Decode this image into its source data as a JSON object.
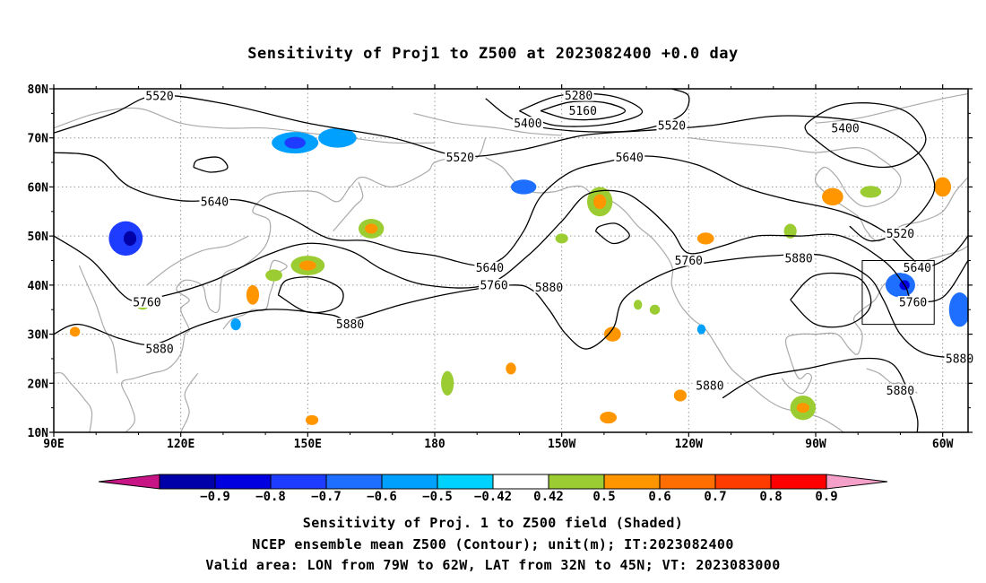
{
  "title": "Sensitivity of Proj1 to Z500 at 2023082400 +0.0 day",
  "map": {
    "lon_range": [
      90,
      306
    ],
    "lat_range": [
      10,
      80
    ],
    "lat_ticks": [
      {
        "value": 80,
        "label": "80N"
      },
      {
        "value": 70,
        "label": "70N"
      },
      {
        "value": 60,
        "label": "60N"
      },
      {
        "value": 50,
        "label": "50N"
      },
      {
        "value": 40,
        "label": "40N"
      },
      {
        "value": 30,
        "label": "30N"
      },
      {
        "value": 20,
        "label": "20N"
      },
      {
        "value": 10,
        "label": "10N"
      }
    ],
    "lon_ticks": [
      {
        "value": 90,
        "label": "90E"
      },
      {
        "value": 120,
        "label": "120E"
      },
      {
        "value": 150,
        "label": "150E"
      },
      {
        "value": 180,
        "label": "180"
      },
      {
        "value": 210,
        "label": "150W"
      },
      {
        "value": 240,
        "label": "120W"
      },
      {
        "value": 270,
        "label": "90W"
      },
      {
        "value": 300,
        "label": "60W"
      }
    ],
    "valid_box": {
      "lon": [
        281,
        298
      ],
      "lat": [
        32,
        45
      ]
    },
    "contour_labels": [
      {
        "text": "5520",
        "lon": 115,
        "lat": 78.5
      },
      {
        "text": "5280",
        "lon": 214,
        "lat": 78.6
      },
      {
        "text": "5160",
        "lon": 215,
        "lat": 75.5
      },
      {
        "text": "5400",
        "lon": 202,
        "lat": 73
      },
      {
        "text": "5520",
        "lon": 236,
        "lat": 72.5
      },
      {
        "text": "5400",
        "lon": 277,
        "lat": 72
      },
      {
        "text": "5520",
        "lon": 186,
        "lat": 66
      },
      {
        "text": "5640",
        "lon": 226,
        "lat": 66
      },
      {
        "text": "5640",
        "lon": 128,
        "lat": 57
      },
      {
        "text": "5520",
        "lon": 290,
        "lat": 50.5
      },
      {
        "text": "5640",
        "lon": 193,
        "lat": 43.5
      },
      {
        "text": "5760",
        "lon": 240,
        "lat": 45
      },
      {
        "text": "5880",
        "lon": 266,
        "lat": 45.5
      },
      {
        "text": "5640",
        "lon": 294,
        "lat": 43.5
      },
      {
        "text": "5760",
        "lon": 112,
        "lat": 36.5
      },
      {
        "text": "5760",
        "lon": 194,
        "lat": 40
      },
      {
        "text": "5880",
        "lon": 207,
        "lat": 39.5
      },
      {
        "text": "5760",
        "lon": 293,
        "lat": 36.5
      },
      {
        "text": "5880",
        "lon": 160,
        "lat": 32
      },
      {
        "text": "5880",
        "lon": 115,
        "lat": 27
      },
      {
        "text": "5880",
        "lon": 304,
        "lat": 25
      },
      {
        "text": "5880",
        "lon": 245,
        "lat": 19.5
      },
      {
        "text": "5880",
        "lon": 290,
        "lat": 18.5
      }
    ],
    "contours": [
      {
        "level": 5160,
        "points": [
          [
            205,
            75.5
          ],
          [
            212,
            73.8
          ],
          [
            220,
            74
          ],
          [
            225,
            75.5
          ],
          [
            220,
            77.2
          ],
          [
            212,
            77.3
          ],
          [
            205,
            75.5
          ]
        ]
      },
      {
        "level": 5280,
        "points": [
          [
            200,
            75.5
          ],
          [
            208,
            72.6
          ],
          [
            220,
            72.7
          ],
          [
            229,
            75.2
          ],
          [
            222,
            78.5
          ],
          [
            210,
            78.7
          ],
          [
            200,
            75.5
          ]
        ]
      },
      {
        "level": 5400,
        "points": [
          [
            192,
            78
          ],
          [
            200,
            73.2
          ],
          [
            213,
            71.4
          ],
          [
            228,
            71.6
          ],
          [
            238,
            74.5
          ],
          [
            240,
            78.5
          ],
          [
            236,
            80
          ]
        ]
      },
      {
        "level": 5400,
        "points": [
          [
            268,
            71
          ],
          [
            276,
            66
          ],
          [
            286,
            64
          ],
          [
            293,
            66
          ],
          [
            296,
            70
          ],
          [
            292,
            75
          ],
          [
            284,
            77
          ],
          [
            275,
            76.5
          ],
          [
            268,
            73
          ],
          [
            268,
            71
          ]
        ]
      },
      {
        "level": 5520,
        "points": [
          [
            90,
            71
          ],
          [
            104,
            75
          ],
          [
            114,
            78.6
          ],
          [
            130,
            77
          ],
          [
            150,
            73
          ],
          [
            170,
            70
          ],
          [
            186,
            66.3
          ],
          [
            200,
            67.5
          ],
          [
            215,
            70.5
          ],
          [
            230,
            71.5
          ],
          [
            245,
            72.5
          ],
          [
            262,
            74.5
          ],
          [
            282,
            73
          ],
          [
            293,
            68
          ],
          [
            298,
            61
          ],
          [
            296,
            56
          ],
          [
            290,
            51
          ],
          [
            283,
            49
          ],
          [
            278,
            52
          ]
        ]
      },
      {
        "level": 5640,
        "points": [
          [
            90,
            67
          ],
          [
            100,
            66
          ],
          [
            108,
            60
          ],
          [
            120,
            57.2
          ],
          [
            134,
            57.3
          ],
          [
            145,
            54
          ],
          [
            155,
            49.5
          ],
          [
            164,
            49
          ],
          [
            172,
            47
          ],
          [
            180,
            46
          ],
          [
            190,
            44
          ],
          [
            196,
            45.5
          ],
          [
            201,
            51
          ],
          [
            205,
            58
          ],
          [
            212,
            63
          ],
          [
            220,
            65
          ],
          [
            230,
            66.3
          ],
          [
            242,
            64.5
          ],
          [
            253,
            60
          ],
          [
            263,
            57.5
          ],
          [
            276,
            55
          ],
          [
            286,
            51
          ],
          [
            292,
            46
          ],
          [
            296,
            43.7
          ],
          [
            302,
            46
          ],
          [
            306,
            50
          ]
        ]
      },
      {
        "level": 5640,
        "points": [
          [
            123,
            64
          ],
          [
            127,
            63
          ],
          [
            131,
            63.8
          ],
          [
            129,
            66
          ],
          [
            124,
            65.5
          ],
          [
            123,
            64
          ]
        ]
      },
      {
        "level": 5760,
        "points": [
          [
            90,
            50
          ],
          [
            99,
            45
          ],
          [
            108,
            37
          ],
          [
            116,
            37.8
          ],
          [
            128,
            41
          ],
          [
            140,
            46
          ],
          [
            150,
            48.5
          ],
          [
            160,
            47
          ],
          [
            168,
            43
          ],
          [
            178,
            40
          ],
          [
            192,
            40
          ],
          [
            202,
            46
          ],
          [
            210,
            53
          ],
          [
            216,
            58.5
          ],
          [
            224,
            59
          ],
          [
            230,
            56
          ],
          [
            236,
            51
          ],
          [
            240,
            46.5
          ],
          [
            248,
            48
          ],
          [
            256,
            50
          ],
          [
            266,
            50
          ],
          [
            276,
            50
          ],
          [
            286,
            45
          ],
          [
            291,
            40
          ],
          [
            293,
            37
          ],
          [
            300,
            37.5
          ],
          [
            306,
            45
          ]
        ]
      },
      {
        "level": 5760,
        "points": [
          [
            218,
            51
          ],
          [
            222,
            48.5
          ],
          [
            226,
            50
          ],
          [
            223,
            52.5
          ],
          [
            219,
            52
          ],
          [
            218,
            51
          ]
        ]
      },
      {
        "level": 5880,
        "points": [
          [
            90,
            30
          ],
          [
            96,
            32
          ],
          [
            106,
            29
          ],
          [
            114,
            28
          ],
          [
            125,
            32
          ],
          [
            140,
            35
          ],
          [
            155,
            34
          ],
          [
            160,
            33
          ],
          [
            172,
            36
          ],
          [
            185,
            38.5
          ],
          [
            198,
            40
          ],
          [
            203,
            39
          ],
          [
            207,
            35
          ],
          [
            211,
            30
          ],
          [
            216,
            27
          ],
          [
            222,
            31
          ],
          [
            225,
            37.5
          ],
          [
            236,
            43
          ],
          [
            248,
            45
          ],
          [
            260,
            46
          ],
          [
            272,
            46
          ],
          [
            282,
            42
          ],
          [
            286,
            37
          ],
          [
            290,
            30
          ],
          [
            296,
            26
          ],
          [
            306,
            25
          ]
        ]
      },
      {
        "level": 5880,
        "points": [
          [
            143,
            38
          ],
          [
            150,
            34.5
          ],
          [
            157,
            35.5
          ],
          [
            158,
            39
          ],
          [
            152,
            41.5
          ],
          [
            145,
            41
          ],
          [
            143,
            38
          ]
        ]
      },
      {
        "level": 5880,
        "points": [
          [
            264,
            37
          ],
          [
            270,
            32
          ],
          [
            278,
            32
          ],
          [
            283,
            36
          ],
          [
            280,
            41.5
          ],
          [
            270,
            42
          ],
          [
            264,
            37
          ]
        ]
      },
      {
        "level": 5880,
        "points": [
          [
            248,
            17
          ],
          [
            256,
            21
          ],
          [
            268,
            23
          ],
          [
            280,
            25
          ],
          [
            288,
            24
          ],
          [
            292,
            18
          ],
          [
            294,
            13
          ],
          [
            294,
            10
          ]
        ]
      }
    ],
    "sensitivity_blobs": [
      {
        "lon": 107,
        "lat": 49.5,
        "rx": 4,
        "ry": 3.5,
        "level": "-0.7"
      },
      {
        "lon": 108,
        "lat": 49.5,
        "rx": 1.5,
        "ry": 1.5,
        "level": "-0.9"
      },
      {
        "lon": 147,
        "lat": 69,
        "rx": 5.5,
        "ry": 2.2,
        "level": "-0.5"
      },
      {
        "lon": 147,
        "lat": 69,
        "rx": 2.5,
        "ry": 1.2,
        "level": "-0.7"
      },
      {
        "lon": 157,
        "lat": 70,
        "rx": 4.5,
        "ry": 2,
        "level": "-0.5"
      },
      {
        "lon": 201,
        "lat": 60,
        "rx": 3,
        "ry": 1.5,
        "level": "-0.6"
      },
      {
        "lon": 290,
        "lat": 40,
        "rx": 3.5,
        "ry": 2.5,
        "level": "-0.6"
      },
      {
        "lon": 291,
        "lat": 40,
        "rx": 1.2,
        "ry": 1,
        "level": "-0.8"
      },
      {
        "lon": 304,
        "lat": 35,
        "rx": 2.5,
        "ry": 3.5,
        "level": "-0.6"
      },
      {
        "lon": 133,
        "lat": 32,
        "rx": 1.2,
        "ry": 1.2,
        "level": "-0.5"
      },
      {
        "lon": 243,
        "lat": 31,
        "rx": 1,
        "ry": 1,
        "level": "-0.5"
      },
      {
        "lon": 165,
        "lat": 51.5,
        "rx": 3,
        "ry": 2,
        "level": "0.5"
      },
      {
        "lon": 165,
        "lat": 51.5,
        "rx": 1.5,
        "ry": 1,
        "level": "0.6"
      },
      {
        "lon": 150,
        "lat": 44,
        "rx": 4,
        "ry": 2,
        "level": "0.5"
      },
      {
        "lon": 150,
        "lat": 44,
        "rx": 2,
        "ry": 1,
        "level": "0.6"
      },
      {
        "lon": 142,
        "lat": 42,
        "rx": 2,
        "ry": 1.2,
        "level": "0.5"
      },
      {
        "lon": 137,
        "lat": 38,
        "rx": 1.5,
        "ry": 2,
        "level": "0.6"
      },
      {
        "lon": 219,
        "lat": 57,
        "rx": 3,
        "ry": 3,
        "level": "0.5"
      },
      {
        "lon": 219,
        "lat": 57,
        "rx": 1.5,
        "ry": 1.5,
        "level": "0.6"
      },
      {
        "lon": 264,
        "lat": 51,
        "rx": 1.5,
        "ry": 1.5,
        "level": "0.5"
      },
      {
        "lon": 274,
        "lat": 58,
        "rx": 2.5,
        "ry": 1.8,
        "level": "0.6"
      },
      {
        "lon": 283,
        "lat": 59,
        "rx": 2.5,
        "ry": 1.2,
        "level": "0.5"
      },
      {
        "lon": 300,
        "lat": 60,
        "rx": 2,
        "ry": 2,
        "level": "0.6"
      },
      {
        "lon": 244,
        "lat": 49.5,
        "rx": 2,
        "ry": 1.2,
        "level": "0.6"
      },
      {
        "lon": 210,
        "lat": 49.5,
        "rx": 1.5,
        "ry": 1,
        "level": "0.5"
      },
      {
        "lon": 222,
        "lat": 30,
        "rx": 2,
        "ry": 1.5,
        "level": "0.6"
      },
      {
        "lon": 228,
        "lat": 36,
        "rx": 1,
        "ry": 1,
        "level": "0.5"
      },
      {
        "lon": 111,
        "lat": 36,
        "rx": 1.5,
        "ry": 1,
        "level": "0.5"
      },
      {
        "lon": 95,
        "lat": 30.5,
        "rx": 1.2,
        "ry": 1,
        "level": "0.6"
      },
      {
        "lon": 267,
        "lat": 15,
        "rx": 3,
        "ry": 2.5,
        "level": "0.5"
      },
      {
        "lon": 267,
        "lat": 15,
        "rx": 1.5,
        "ry": 1,
        "level": "0.6"
      },
      {
        "lon": 183,
        "lat": 20,
        "rx": 1.5,
        "ry": 2.5,
        "level": "0.5"
      },
      {
        "lon": 198,
        "lat": 23,
        "rx": 1.2,
        "ry": 1.2,
        "level": "0.6"
      },
      {
        "lon": 238,
        "lat": 17.5,
        "rx": 1.5,
        "ry": 1.2,
        "level": "0.6"
      },
      {
        "lon": 221,
        "lat": 13,
        "rx": 2,
        "ry": 1.2,
        "level": "0.6"
      },
      {
        "lon": 151,
        "lat": 12.5,
        "rx": 1.5,
        "ry": 1,
        "level": "0.6"
      },
      {
        "lon": 232,
        "lat": 35,
        "rx": 1.2,
        "ry": 1,
        "level": "0.5"
      }
    ]
  },
  "colorbar": {
    "colors": [
      "#c71585",
      "#0000a8",
      "#0000e0",
      "#1e3cff",
      "#1e6eff",
      "#00a0ff",
      "#00d2ff",
      "#ffffff",
      "#9bcd32",
      "#ff9600",
      "#ff6e00",
      "#ff3c00",
      "#ff0000",
      "#f5a0c8"
    ],
    "level_colors": {
      "-0.9": "#0000a8",
      "-0.8": "#0000e0",
      "-0.7": "#1e3cff",
      "-0.6": "#1e6eff",
      "-0.5": "#00a0ff",
      "0.5": "#9bcd32",
      "0.6": "#ff9600",
      "0.7": "#ff6e00",
      "0.8": "#ff3c00",
      "0.9": "#ff0000"
    },
    "labels": [
      "-0.9",
      "-0.8",
      "-0.7",
      "-0.6",
      "-0.5",
      "-0.42",
      "0.42",
      "0.5",
      "0.6",
      "0.7",
      "0.8",
      "0.9"
    ]
  },
  "captions": {
    "line1": "Sensitivity of Proj. 1 to Z500 field (Shaded)",
    "line2": "NCEP ensemble mean Z500 (Contour); unit(m); IT:2023082400",
    "line3": "Valid area: LON from 79W to 62W, LAT from 32N to 45N; VT: 2023083000"
  }
}
